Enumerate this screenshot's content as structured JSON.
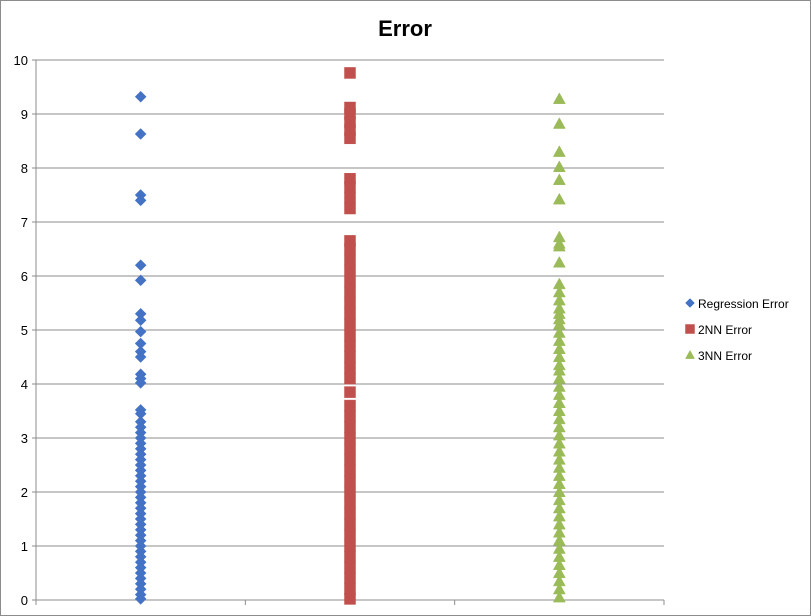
{
  "chart_data": {
    "type": "scatter",
    "title": "Error",
    "xlabel": "",
    "ylabel": "",
    "xlim": [
      0,
      3
    ],
    "ylim": [
      0,
      10
    ],
    "yticks": [
      0,
      1,
      2,
      3,
      4,
      5,
      6,
      7,
      8,
      9,
      10
    ],
    "grid": true,
    "legend_position": "right",
    "series": [
      {
        "name": "Regression Error",
        "marker": "diamond",
        "color": "#4472C4",
        "x": 0.5,
        "y": [
          9.32,
          8.63,
          7.5,
          7.4,
          6.2,
          5.92,
          5.3,
          5.18,
          4.97,
          4.75,
          4.6,
          4.5,
          4.18,
          4.1,
          4.02,
          3.52,
          3.45,
          3.3,
          3.2,
          3.1,
          3.0,
          2.9,
          2.8,
          2.7,
          2.6,
          2.5,
          2.4,
          2.3,
          2.2,
          2.1,
          2.0,
          1.9,
          1.8,
          1.7,
          1.6,
          1.5,
          1.4,
          1.3,
          1.2,
          1.1,
          1.0,
          0.9,
          0.8,
          0.7,
          0.6,
          0.5,
          0.4,
          0.3,
          0.2,
          0.1,
          0.02
        ]
      },
      {
        "name": "2NN Error",
        "marker": "square",
        "color": "#C0504D",
        "x": 1.5,
        "y": [
          9.76,
          9.12,
          9.0,
          8.85,
          8.7,
          8.55,
          7.8,
          7.65,
          7.45,
          7.25,
          6.65,
          6.5,
          6.3,
          6.1,
          5.9,
          5.7,
          5.5,
          5.3,
          5.1,
          4.9,
          4.7,
          4.5,
          4.3,
          4.1,
          3.85,
          3.6,
          3.4,
          3.2,
          3.0,
          2.8,
          2.6,
          2.4,
          2.2,
          2.0,
          1.8,
          1.6,
          1.4,
          1.2,
          1.0,
          0.8,
          0.6,
          0.4,
          0.2,
          0.02
        ]
      },
      {
        "name": "3NN Error",
        "marker": "triangle",
        "color": "#9BBB59",
        "x": 2.5,
        "y": [
          9.28,
          8.82,
          8.3,
          8.02,
          7.78,
          7.42,
          6.72,
          6.6,
          6.55,
          6.25,
          5.85,
          5.7,
          5.55,
          5.4,
          5.3,
          5.2,
          5.1,
          4.95,
          4.8,
          4.65,
          4.5,
          4.35,
          4.25,
          4.1,
          3.95,
          3.8,
          3.65,
          3.5,
          3.35,
          3.2,
          3.05,
          2.9,
          2.75,
          2.6,
          2.45,
          2.3,
          2.15,
          2.0,
          1.85,
          1.7,
          1.55,
          1.4,
          1.25,
          1.1,
          0.95,
          0.8,
          0.65,
          0.5,
          0.35,
          0.2,
          0.05
        ]
      }
    ]
  }
}
